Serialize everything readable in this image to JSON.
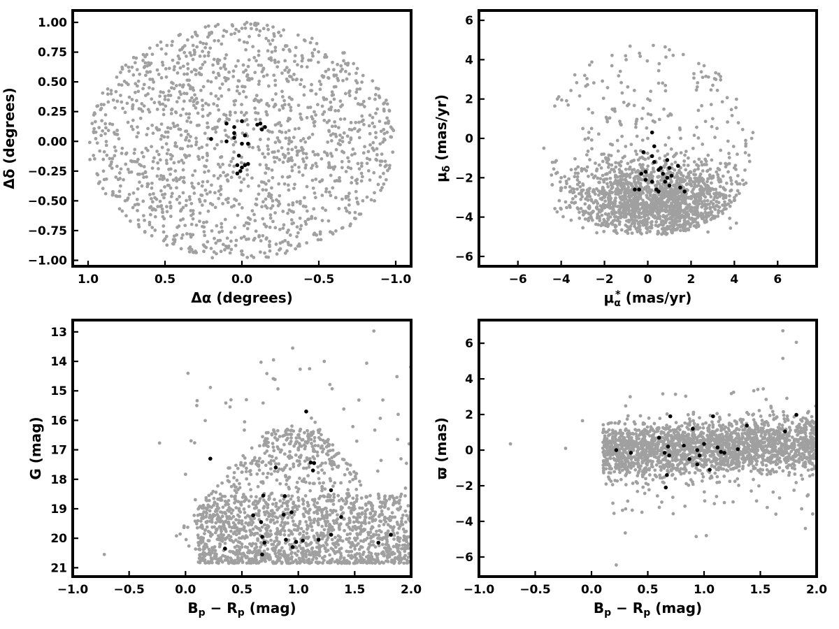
{
  "colors": {
    "field": "#a0a0a0",
    "members": "#000000",
    "frame": "#000000"
  },
  "chart_data": [
    {
      "type": "scatter",
      "id": "sky",
      "xlabel": "Δα (degrees)",
      "ylabel": "Δδ (degrees)",
      "xlim": [
        1.1,
        -1.1
      ],
      "ylim": [
        -1.05,
        1.1
      ],
      "xticks": [
        1.0,
        0.5,
        0.0,
        -0.5,
        -1.0
      ],
      "xtick_labels": [
        "1.0",
        "0.5",
        "0.0",
        "−0.5",
        "−1.0"
      ],
      "yticks": [
        -1.0,
        -0.75,
        -0.5,
        -0.25,
        0.0,
        0.25,
        0.5,
        0.75,
        1.0
      ],
      "ytick_labels": [
        "−1.00",
        "−0.75",
        "−0.50",
        "−0.25",
        "0.00",
        "0.25",
        "0.50",
        "0.75",
        "1.00"
      ],
      "grid": false,
      "series": [
        {
          "color": "#a0a0a0",
          "values": [
            [
              0.85,
              0.4
            ],
            [
              0.55,
              0.6
            ],
            [
              0.3,
              0.9
            ],
            [
              -0.2,
              0.85
            ],
            [
              -0.6,
              0.55
            ],
            [
              -0.85,
              0.2
            ],
            [
              -0.9,
              -0.2
            ],
            [
              -0.7,
              -0.6
            ],
            [
              -0.3,
              -0.85
            ],
            [
              0.2,
              -0.9
            ],
            [
              0.6,
              -0.7
            ],
            [
              0.9,
              -0.25
            ],
            [
              0.0,
              0.95
            ],
            [
              0.0,
              -0.95
            ],
            [
              0.4,
              0.1
            ],
            [
              -0.4,
              -0.1
            ],
            [
              0.2,
              0.5
            ],
            [
              -0.2,
              -0.5
            ],
            [
              0.7,
              -0.1
            ],
            [
              -0.7,
              0.1
            ]
          ]
        },
        {
          "color": "#000000",
          "values": [
            [
              0.1,
              0.15
            ],
            [
              0.05,
              0.12
            ],
            [
              -0.12,
              0.15
            ],
            [
              -0.15,
              0.12
            ],
            [
              0.2,
              0.02
            ],
            [
              0.1,
              0.0
            ],
            [
              0.05,
              0.03
            ],
            [
              -0.02,
              0.05
            ],
            [
              0.0,
              -0.02
            ],
            [
              -0.04,
              -0.02
            ],
            [
              0.02,
              -0.12
            ],
            [
              0.03,
              -0.2
            ],
            [
              0.0,
              -0.22
            ],
            [
              -0.02,
              -0.2
            ],
            [
              0.01,
              -0.25
            ],
            [
              0.03,
              -0.27
            ],
            [
              -0.04,
              -0.19
            ],
            [
              0.05,
              0.07
            ],
            [
              -0.13,
              0.1
            ],
            [
              -0.1,
              0.14
            ],
            [
              0.0,
              0.17
            ]
          ]
        }
      ]
    },
    {
      "type": "scatter",
      "id": "pm",
      "xlabel": "μα* (mas/yr)",
      "ylabel": "μδ (mas/yr)",
      "xlim": [
        -7.8,
        7.8
      ],
      "ylim": [
        -6.5,
        6.5
      ],
      "xticks": [
        -6,
        -4,
        -2,
        0,
        2,
        4,
        6
      ],
      "xtick_labels": [
        "−6",
        "−4",
        "−2",
        "0",
        "2",
        "4",
        "6"
      ],
      "yticks": [
        -6,
        -4,
        -2,
        0,
        2,
        4,
        6
      ],
      "ytick_labels": [
        "−6",
        "−4",
        "−2",
        "0",
        "2",
        "4",
        "6"
      ],
      "grid": false,
      "series": [
        {
          "color": "#a0a0a0",
          "values": [
            [
              0.0,
              -3.5
            ],
            [
              -2.0,
              -3.0
            ],
            [
              2.0,
              -3.0
            ],
            [
              -4.0,
              -2.0
            ],
            [
              4.0,
              -1.5
            ],
            [
              -3.0,
              0.5
            ],
            [
              3.0,
              1.0
            ],
            [
              0.0,
              2.0
            ],
            [
              -1.0,
              4.0
            ],
            [
              1.0,
              4.5
            ],
            [
              -4.8,
              -0.5
            ],
            [
              4.8,
              0.0
            ],
            [
              0.5,
              -4.8
            ],
            [
              -1.5,
              -4.5
            ],
            [
              1.5,
              -4.5
            ],
            [
              2.5,
              -2.5
            ],
            [
              -2.5,
              -2.0
            ],
            [
              0.0,
              0.0
            ]
          ]
        },
        {
          "color": "#000000",
          "values": [
            [
              0.2,
              0.3
            ],
            [
              0.3,
              -0.4
            ],
            [
              0.2,
              -0.9
            ],
            [
              -0.2,
              -0.7
            ],
            [
              -0.1,
              -1.7
            ],
            [
              -0.3,
              -1.8
            ],
            [
              0.3,
              -1.2
            ],
            [
              0.9,
              -1.1
            ],
            [
              1.4,
              -1.4
            ],
            [
              1.0,
              -1.5
            ],
            [
              0.6,
              -1.5
            ],
            [
              0.7,
              -1.8
            ],
            [
              0.5,
              -1.6
            ],
            [
              0.9,
              -2.0
            ],
            [
              1.1,
              -1.9
            ],
            [
              0.8,
              -2.2
            ],
            [
              1.0,
              -2.4
            ],
            [
              0.4,
              -2.6
            ],
            [
              0.5,
              -2.7
            ],
            [
              -0.4,
              -2.6
            ],
            [
              -0.6,
              -2.6
            ],
            [
              1.5,
              -2.5
            ],
            [
              1.7,
              -2.7
            ],
            [
              0.2,
              -2.2
            ],
            [
              -0.1,
              -2.1
            ]
          ]
        }
      ]
    },
    {
      "type": "scatter",
      "id": "cmd",
      "xlabel": "Bp − Rp (mag)",
      "ylabel": "G (mag)",
      "xlim": [
        -1.0,
        2.0
      ],
      "ylim": [
        21.3,
        12.6
      ],
      "xticks": [
        -1.0,
        -0.5,
        0.0,
        0.5,
        1.0,
        1.5,
        2.0
      ],
      "xtick_labels": [
        "−1.0",
        "−0.5",
        "0.0",
        "0.5",
        "1.0",
        "1.5",
        "2.0"
      ],
      "yticks": [
        13,
        14,
        15,
        16,
        17,
        18,
        19,
        20,
        21
      ],
      "ytick_labels": [
        "13",
        "14",
        "15",
        "16",
        "17",
        "18",
        "19",
        "20",
        "21"
      ],
      "grid": false,
      "series": [
        {
          "color": "#a0a0a0",
          "values": [
            [
              -0.72,
              20.55
            ],
            [
              -0.08,
              19.92
            ],
            [
              -0.23,
              16.77
            ],
            [
              0.0,
              17.83
            ],
            [
              0.1,
              15.5
            ],
            [
              0.54,
              15.3
            ],
            [
              0.78,
              13.95
            ],
            [
              0.95,
              13.55
            ],
            [
              1.67,
              12.97
            ],
            [
              1.23,
              14.0
            ],
            [
              1.1,
              14.25
            ],
            [
              1.3,
              14.93
            ],
            [
              1.88,
              16.65
            ],
            [
              1.95,
              18.3
            ],
            [
              1.0,
              17.0
            ],
            [
              0.5,
              20.3
            ],
            [
              1.5,
              20.0
            ]
          ]
        },
        {
          "color": "#000000",
          "values": [
            [
              0.35,
              20.35
            ],
            [
              0.68,
              20.55
            ],
            [
              0.7,
              20.15
            ],
            [
              0.68,
              19.95
            ],
            [
              0.67,
              19.45
            ],
            [
              0.6,
              19.22
            ],
            [
              0.69,
              18.55
            ],
            [
              0.8,
              17.6
            ],
            [
              0.22,
              17.3
            ],
            [
              0.87,
              19.2
            ],
            [
              0.88,
              18.57
            ],
            [
              0.94,
              19.12
            ],
            [
              0.89,
              20.05
            ],
            [
              0.95,
              20.3
            ],
            [
              0.98,
              20.12
            ],
            [
              1.04,
              20.08
            ],
            [
              1.18,
              20.05
            ],
            [
              1.29,
              19.88
            ],
            [
              1.71,
              20.15
            ],
            [
              1.82,
              19.88
            ],
            [
              1.38,
              19.28
            ],
            [
              1.29,
              18.37
            ],
            [
              1.13,
              17.7
            ],
            [
              1.14,
              17.45
            ],
            [
              1.11,
              17.43
            ],
            [
              1.07,
              15.7
            ]
          ]
        }
      ]
    },
    {
      "type": "scatter",
      "id": "plx",
      "xlabel": "Bp − Rp (mag)",
      "ylabel": "ϖ (mas)",
      "xlim": [
        -1.0,
        2.0
      ],
      "ylim": [
        -7.1,
        7.3
      ],
      "xticks": [
        -1.0,
        -0.5,
        0.0,
        0.5,
        1.0,
        1.5,
        2.0
      ],
      "xtick_labels": [
        "−1.0",
        "−0.5",
        "0.0",
        "0.5",
        "1.0",
        "1.5",
        "2.0"
      ],
      "yticks": [
        -6,
        -4,
        -2,
        0,
        2,
        4,
        6
      ],
      "ytick_labels": [
        "−6",
        "−4",
        "−2",
        "0",
        "2",
        "4",
        "6"
      ],
      "grid": false,
      "series": [
        {
          "color": "#a0a0a0",
          "values": [
            [
              -0.72,
              0.35
            ],
            [
              -0.23,
              0.1
            ],
            [
              -0.08,
              1.65
            ],
            [
              0.22,
              -6.45
            ],
            [
              0.3,
              -4.65
            ],
            [
              0.93,
              -4.85
            ],
            [
              1.02,
              -4.8
            ],
            [
              1.7,
              6.7
            ],
            [
              1.82,
              6.05
            ],
            [
              1.9,
              -4.4
            ],
            [
              1.7,
              5.15
            ],
            [
              0.2,
              -3.55
            ],
            [
              1.0,
              0.0
            ],
            [
              1.5,
              0.5
            ],
            [
              0.5,
              0.2
            ]
          ]
        },
        {
          "color": "#000000",
          "values": [
            [
              0.22,
              0.0
            ],
            [
              0.35,
              -0.15
            ],
            [
              0.6,
              0.7
            ],
            [
              0.7,
              1.9
            ],
            [
              0.65,
              -0.15
            ],
            [
              0.68,
              0.2
            ],
            [
              0.69,
              -0.3
            ],
            [
              0.67,
              -1.4
            ],
            [
              0.66,
              -2.1
            ],
            [
              0.82,
              0.25
            ],
            [
              0.87,
              -0.5
            ],
            [
              0.9,
              1.2
            ],
            [
              0.94,
              0.0
            ],
            [
              0.96,
              -0.3
            ],
            [
              0.94,
              -0.8
            ],
            [
              1.0,
              0.35
            ],
            [
              1.05,
              -1.1
            ],
            [
              1.08,
              1.9
            ],
            [
              1.12,
              0.15
            ],
            [
              1.15,
              -0.1
            ],
            [
              1.18,
              -0.15
            ],
            [
              1.3,
              0.05
            ],
            [
              1.38,
              1.38
            ],
            [
              1.72,
              1.05
            ],
            [
              1.82,
              1.98
            ]
          ]
        }
      ]
    }
  ]
}
